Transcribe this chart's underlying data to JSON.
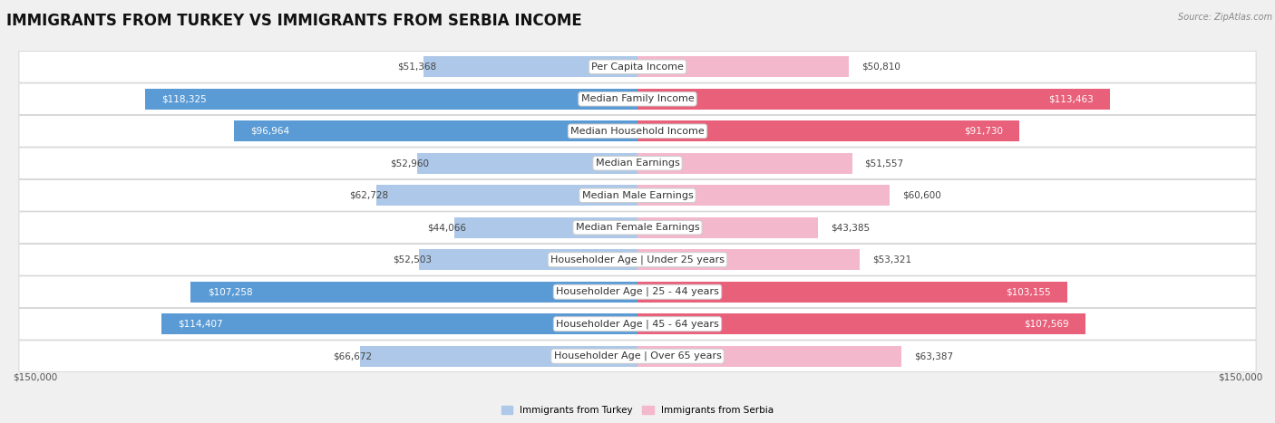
{
  "title": "IMMIGRANTS FROM TURKEY VS IMMIGRANTS FROM SERBIA INCOME",
  "source": "Source: ZipAtlas.com",
  "categories": [
    "Per Capita Income",
    "Median Family Income",
    "Median Household Income",
    "Median Earnings",
    "Median Male Earnings",
    "Median Female Earnings",
    "Householder Age | Under 25 years",
    "Householder Age | 25 - 44 years",
    "Householder Age | 45 - 64 years",
    "Householder Age | Over 65 years"
  ],
  "turkey_values": [
    51368,
    118325,
    96964,
    52960,
    62728,
    44066,
    52503,
    107258,
    114407,
    66672
  ],
  "serbia_values": [
    50810,
    113463,
    91730,
    51557,
    60600,
    43385,
    53321,
    103155,
    107569,
    63387
  ],
  "turkey_color_light": "#adc8e8",
  "turkey_color_dark": "#5b9bd5",
  "serbia_color_light": "#f4b8cc",
  "serbia_color_dark": "#e8607a",
  "max_value": 150000,
  "background_color": "#f0f0f0",
  "row_bg_color": "#ffffff",
  "legend_turkey": "Immigrants from Turkey",
  "legend_serbia": "Immigrants from Serbia",
  "title_fontsize": 12,
  "label_fontsize": 8,
  "value_fontsize": 7.5,
  "axis_label": "$150,000",
  "inside_threshold": 75000
}
